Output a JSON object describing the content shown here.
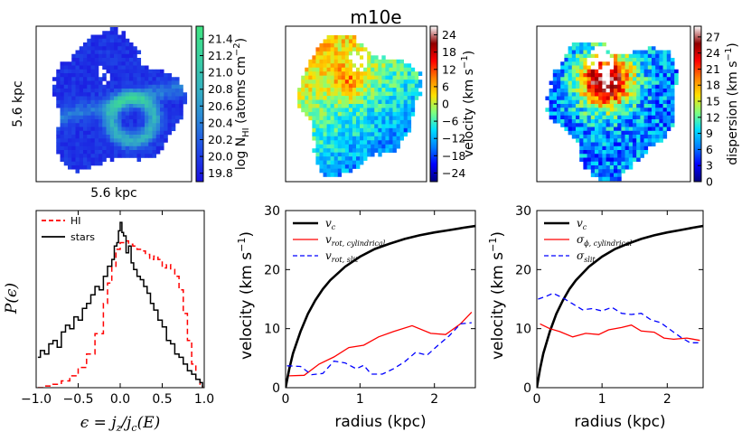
{
  "page_title": "m10e",
  "chart_data": [
    {
      "id": "map_hi",
      "type": "heatmap",
      "scale_label_x": "5.6 kpc",
      "scale_label_y": "5.6 kpc",
      "colorbar_label": "log N",
      "colorbar_label_sub": "HI",
      "colorbar_label_tail": "(atoms cm",
      "colorbar_label_sup": "−2",
      "colorbar_label_end": ")",
      "colorbar_ticks": [
        "19.8",
        "20.0",
        "20.2",
        "20.4",
        "20.6",
        "20.8",
        "21.0",
        "21.2",
        "21.4"
      ],
      "colorbar_range": [
        19.7,
        21.55
      ],
      "colors": [
        "#1a10e0",
        "#1f48e6",
        "#2a86d8",
        "#34b2c0",
        "#3ad0a0",
        "#3fe582"
      ]
    },
    {
      "id": "map_velocity",
      "type": "heatmap",
      "colorbar_label": "velocity (km s",
      "colorbar_label_sup": "−1",
      "colorbar_label_end": ")",
      "colorbar_ticks": [
        "−24",
        "−18",
        "−12",
        "−6",
        "0",
        "6",
        "12",
        "18",
        "24"
      ],
      "colorbar_range": [
        -27,
        27
      ],
      "colors": [
        "#00007f",
        "#0000ff",
        "#007fff",
        "#00e0ff",
        "#7fff7f",
        "#ffe000",
        "#ff7f00",
        "#ff0000",
        "#8f0000",
        "#ffffff"
      ]
    },
    {
      "id": "map_dispersion",
      "type": "heatmap",
      "colorbar_label": "dispersion (km s",
      "colorbar_label_sup": "−1",
      "colorbar_label_end": ")",
      "colorbar_ticks": [
        "0",
        "3",
        "6",
        "9",
        "12",
        "15",
        "18",
        "21",
        "24",
        "27"
      ],
      "colorbar_range": [
        0,
        29
      ],
      "colors": [
        "#00007f",
        "#0000ff",
        "#007fff",
        "#00e0ff",
        "#7fff7f",
        "#ffe000",
        "#ff7f00",
        "#ff0000",
        "#8f0000",
        "#ffffff"
      ]
    },
    {
      "id": "p_eps",
      "type": "line",
      "xlabel": "ϵ = j_z / j_c(E)",
      "xlabel_parts": {
        "eps": "ϵ",
        "eq": " = ",
        "j": "j",
        "z": "z",
        "slash": "/",
        "jc": "j",
        "c": "c",
        "E": "(E)"
      },
      "ylabel": "P(ϵ)",
      "xlim": [
        -1.0,
        1.0
      ],
      "ylim": [
        0,
        1.05
      ],
      "xticks": [
        "−1.0",
        "−0.5",
        "0.0",
        "0.5",
        "1.0"
      ],
      "xtick_values": [
        -1.0,
        -0.5,
        0.0,
        0.5,
        1.0
      ],
      "legend": [
        {
          "name": "HI",
          "color": "#ff0000",
          "style": "dashed"
        },
        {
          "name": "stars",
          "color": "#000000",
          "style": "solid"
        }
      ],
      "series": [
        {
          "name": "HI",
          "color": "#ff0000",
          "x": [
            -0.98,
            -0.9,
            -0.8,
            -0.7,
            -0.6,
            -0.5,
            -0.4,
            -0.3,
            -0.2,
            -0.15,
            -0.1,
            -0.05,
            0.0,
            0.05,
            0.1,
            0.15,
            0.2,
            0.25,
            0.3,
            0.35,
            0.4,
            0.45,
            0.5,
            0.55,
            0.6,
            0.65,
            0.7,
            0.75,
            0.8,
            0.85,
            0.9,
            0.95,
            0.98
          ],
          "y": [
            0.0,
            0.01,
            0.02,
            0.04,
            0.07,
            0.12,
            0.2,
            0.32,
            0.5,
            0.62,
            0.72,
            0.82,
            0.86,
            0.87,
            0.85,
            0.84,
            0.82,
            0.81,
            0.79,
            0.76,
            0.78,
            0.76,
            0.71,
            0.73,
            0.7,
            0.66,
            0.58,
            0.44,
            0.28,
            0.14,
            0.05,
            0.01,
            0.0
          ]
        },
        {
          "name": "stars",
          "color": "#000000",
          "x": [
            -0.98,
            -0.95,
            -0.9,
            -0.85,
            -0.8,
            -0.75,
            -0.7,
            -0.65,
            -0.6,
            -0.55,
            -0.5,
            -0.45,
            -0.4,
            -0.35,
            -0.3,
            -0.25,
            -0.2,
            -0.15,
            -0.1,
            -0.07,
            -0.04,
            -0.02,
            0.0,
            0.02,
            0.04,
            0.07,
            0.1,
            0.13,
            0.16,
            0.2,
            0.24,
            0.28,
            0.32,
            0.36,
            0.4,
            0.45,
            0.5,
            0.55,
            0.6,
            0.65,
            0.7,
            0.75,
            0.8,
            0.85,
            0.9,
            0.95,
            0.98
          ],
          "y": [
            0.18,
            0.22,
            0.2,
            0.26,
            0.28,
            0.24,
            0.33,
            0.37,
            0.35,
            0.42,
            0.4,
            0.47,
            0.5,
            0.55,
            0.6,
            0.58,
            0.66,
            0.72,
            0.76,
            0.84,
            0.86,
            0.93,
            0.98,
            0.92,
            0.9,
            0.8,
            0.84,
            0.74,
            0.7,
            0.66,
            0.64,
            0.6,
            0.56,
            0.5,
            0.46,
            0.4,
            0.36,
            0.28,
            0.26,
            0.2,
            0.18,
            0.14,
            0.1,
            0.08,
            0.05,
            0.03,
            0.0
          ]
        }
      ]
    },
    {
      "id": "vel_curve",
      "type": "line",
      "xlabel": "radius (kpc)",
      "ylabel": "velocity (km s",
      "ylabel_sup": "−1",
      "ylabel_end": ")",
      "xlim": [
        0,
        2.55
      ],
      "ylim": [
        0,
        30
      ],
      "xticks": [
        "0",
        "1",
        "2"
      ],
      "xtick_values": [
        0,
        1,
        2
      ],
      "yticks": [
        "0",
        "10",
        "20",
        "30"
      ],
      "ytick_values": [
        0,
        10,
        20,
        30
      ],
      "legend": [
        {
          "name": "v",
          "sub": "c",
          "color": "#000000",
          "style": "solid",
          "width": 2.6
        },
        {
          "name": "v",
          "sub": "rot, cylindrical",
          "color": "#ff0000",
          "style": "solid",
          "width": 1.3
        },
        {
          "name": "v",
          "sub": "rot, slit",
          "color": "#0000ff",
          "style": "dashed",
          "width": 1.3
        }
      ],
      "series": [
        {
          "name": "v_c",
          "color": "#000000",
          "width": 2.6,
          "x": [
            0,
            0.05,
            0.1,
            0.2,
            0.3,
            0.4,
            0.5,
            0.6,
            0.8,
            1.0,
            1.2,
            1.4,
            1.6,
            1.8,
            2.0,
            2.2,
            2.4,
            2.55
          ],
          "y": [
            0,
            3.2,
            5.8,
            9.5,
            12.5,
            14.8,
            16.7,
            18.2,
            20.5,
            22.2,
            23.5,
            24.4,
            25.2,
            25.8,
            26.3,
            26.7,
            27.1,
            27.4
          ]
        },
        {
          "name": "v_rot, cylindrical",
          "color": "#ff0000",
          "width": 1.3,
          "x": [
            0.05,
            0.25,
            0.45,
            0.65,
            0.85,
            1.05,
            1.25,
            1.45,
            1.7,
            1.95,
            2.15,
            2.35,
            2.5
          ],
          "y": [
            2.0,
            2.1,
            4.0,
            5.2,
            6.8,
            7.2,
            8.6,
            9.5,
            10.5,
            9.2,
            9.0,
            10.8,
            12.8
          ]
        },
        {
          "name": "v_rot, slit",
          "color": "#0000ff",
          "width": 1.3,
          "x": [
            0.02,
            0.2,
            0.35,
            0.5,
            0.65,
            0.8,
            0.95,
            1.05,
            1.15,
            1.3,
            1.45,
            1.6,
            1.75,
            1.9,
            2.05,
            2.2,
            2.35,
            2.5
          ],
          "y": [
            3.7,
            3.6,
            2.2,
            2.4,
            4.5,
            4.2,
            3.2,
            3.8,
            2.3,
            2.3,
            3.2,
            4.4,
            6.0,
            5.5,
            7.2,
            8.8,
            10.8,
            11.0
          ]
        }
      ]
    },
    {
      "id": "disp_curve",
      "type": "line",
      "xlabel": "radius (kpc)",
      "ylabel": "velocity (km s",
      "ylabel_sup": "−1",
      "ylabel_end": ")",
      "xlim": [
        0,
        2.55
      ],
      "ylim": [
        0,
        30
      ],
      "xticks": [
        "0",
        "1",
        "2"
      ],
      "xtick_values": [
        0,
        1,
        2
      ],
      "yticks": [
        "0",
        "10",
        "20",
        "30"
      ],
      "ytick_values": [
        0,
        10,
        20,
        30
      ],
      "legend": [
        {
          "name": "v",
          "sub": "c",
          "color": "#000000",
          "style": "solid",
          "width": 2.6
        },
        {
          "name": "σ",
          "sub": "ϕ, cylindrical",
          "color": "#ff0000",
          "style": "solid",
          "width": 1.3
        },
        {
          "name": "σ",
          "sub": "slit",
          "color": "#0000ff",
          "style": "dashed",
          "width": 1.3
        }
      ],
      "series": [
        {
          "name": "v_c",
          "color": "#000000",
          "width": 2.6,
          "x": [
            0,
            0.05,
            0.1,
            0.2,
            0.3,
            0.4,
            0.5,
            0.6,
            0.8,
            1.0,
            1.2,
            1.4,
            1.6,
            1.8,
            2.0,
            2.2,
            2.4,
            2.55
          ],
          "y": [
            0,
            3.2,
            5.8,
            9.5,
            12.5,
            14.8,
            16.7,
            18.2,
            20.5,
            22.2,
            23.5,
            24.4,
            25.2,
            25.8,
            26.3,
            26.7,
            27.1,
            27.4
          ]
        },
        {
          "name": "sigma_phi, cylindrical",
          "color": "#ff0000",
          "width": 1.3,
          "x": [
            0.05,
            0.2,
            0.35,
            0.55,
            0.75,
            0.95,
            1.1,
            1.3,
            1.45,
            1.6,
            1.8,
            1.95,
            2.1,
            2.3,
            2.5
          ],
          "y": [
            10.8,
            10.0,
            9.5,
            8.6,
            9.2,
            9.0,
            9.8,
            10.2,
            10.6,
            9.6,
            9.4,
            8.4,
            8.2,
            8.4,
            8.0
          ]
        },
        {
          "name": "sigma_slit",
          "color": "#0000ff",
          "width": 1.3,
          "x": [
            0.02,
            0.15,
            0.25,
            0.4,
            0.55,
            0.7,
            0.85,
            1.0,
            1.15,
            1.3,
            1.45,
            1.6,
            1.75,
            1.9,
            2.05,
            2.2,
            2.35,
            2.5
          ],
          "y": [
            15.0,
            15.5,
            16.0,
            15.2,
            14.2,
            13.2,
            13.4,
            13.0,
            13.6,
            12.6,
            12.4,
            12.6,
            11.5,
            11.0,
            9.8,
            8.6,
            7.6,
            7.6
          ]
        }
      ]
    }
  ]
}
